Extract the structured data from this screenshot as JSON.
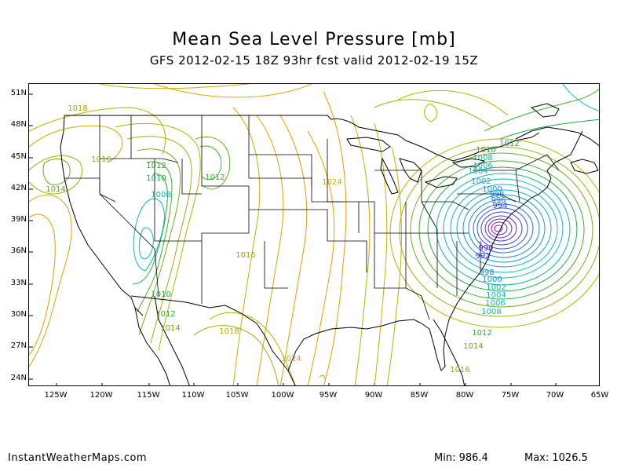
{
  "title": "Mean Sea Level Pressure [mb]",
  "subtitle": "GFS 2012-02-15 18Z 93hr fcst valid 2012-02-19 15Z",
  "footer": {
    "site": "InstantWeatherMaps.com",
    "min": "Min:  986.4",
    "max": "Max: 1026.5"
  },
  "lat_labels": [
    "51N",
    "48N",
    "45N",
    "42N",
    "39N",
    "36N",
    "33N",
    "30N",
    "27N",
    "24N"
  ],
  "lon_labels": [
    "125W",
    "120W",
    "115W",
    "110W",
    "105W",
    "100W",
    "95W",
    "90W",
    "85W",
    "80W",
    "75W",
    "70W",
    "65W"
  ],
  "contour_labels": [
    {
      "text": "1018",
      "color": "#9aa80a"
    },
    {
      "text": "1016",
      "color": "#9aa80a"
    },
    {
      "text": "1014",
      "color": "#6aa818"
    },
    {
      "text": "1012",
      "color": "#3aa830"
    },
    {
      "text": "1010",
      "color": "#22a840"
    },
    {
      "text": "1008",
      "color": "#10b8a8"
    },
    {
      "text": "1012",
      "color": "#3aa830"
    },
    {
      "text": "1024",
      "color": "#d4a800"
    },
    {
      "text": "1016",
      "color": "#9aa80a"
    },
    {
      "text": "1010",
      "color": "#22a840"
    },
    {
      "text": "1012",
      "color": "#3aa830"
    },
    {
      "text": "1014",
      "color": "#6aa818"
    },
    {
      "text": "1018",
      "color": "#b8a800"
    },
    {
      "text": "1024",
      "color": "#d4a800"
    },
    {
      "text": "1010",
      "color": "#22a840"
    },
    {
      "text": "1008",
      "color": "#10b8a8"
    },
    {
      "text": "1006",
      "color": "#10b8c0"
    },
    {
      "text": "1004",
      "color": "#10b8d0"
    },
    {
      "text": "1002",
      "color": "#10a8d8"
    },
    {
      "text": "1000",
      "color": "#1098e0"
    },
    {
      "text": "998",
      "color": "#1088e0"
    },
    {
      "text": "996",
      "color": "#2070e0"
    },
    {
      "text": "994",
      "color": "#3050e0"
    },
    {
      "text": "992",
      "color": "#5030d8"
    },
    {
      "text": "990",
      "color": "#6820d0"
    },
    {
      "text": "998",
      "color": "#1088e0"
    },
    {
      "text": "1000",
      "color": "#1098e0"
    },
    {
      "text": "1002",
      "color": "#10a8d8"
    },
    {
      "text": "1004",
      "color": "#10b8d0"
    },
    {
      "text": "1006",
      "color": "#10b8c0"
    },
    {
      "text": "1008",
      "color": "#10b8a8"
    },
    {
      "text": "1012",
      "color": "#3aa830"
    },
    {
      "text": "1014",
      "color": "#6aa818"
    },
    {
      "text": "1016",
      "color": "#9aa80a"
    },
    {
      "text": "1012",
      "color": "#3aa830"
    }
  ],
  "contour_colors": {
    "orange": "#e0a000",
    "yellow_green": "#b4b400",
    "green": "#40b030",
    "teal": "#10b8b0",
    "cyan": "#10a8e0",
    "blue": "#2060e0",
    "purple": "#7020c8",
    "magenta": "#a010b0"
  }
}
